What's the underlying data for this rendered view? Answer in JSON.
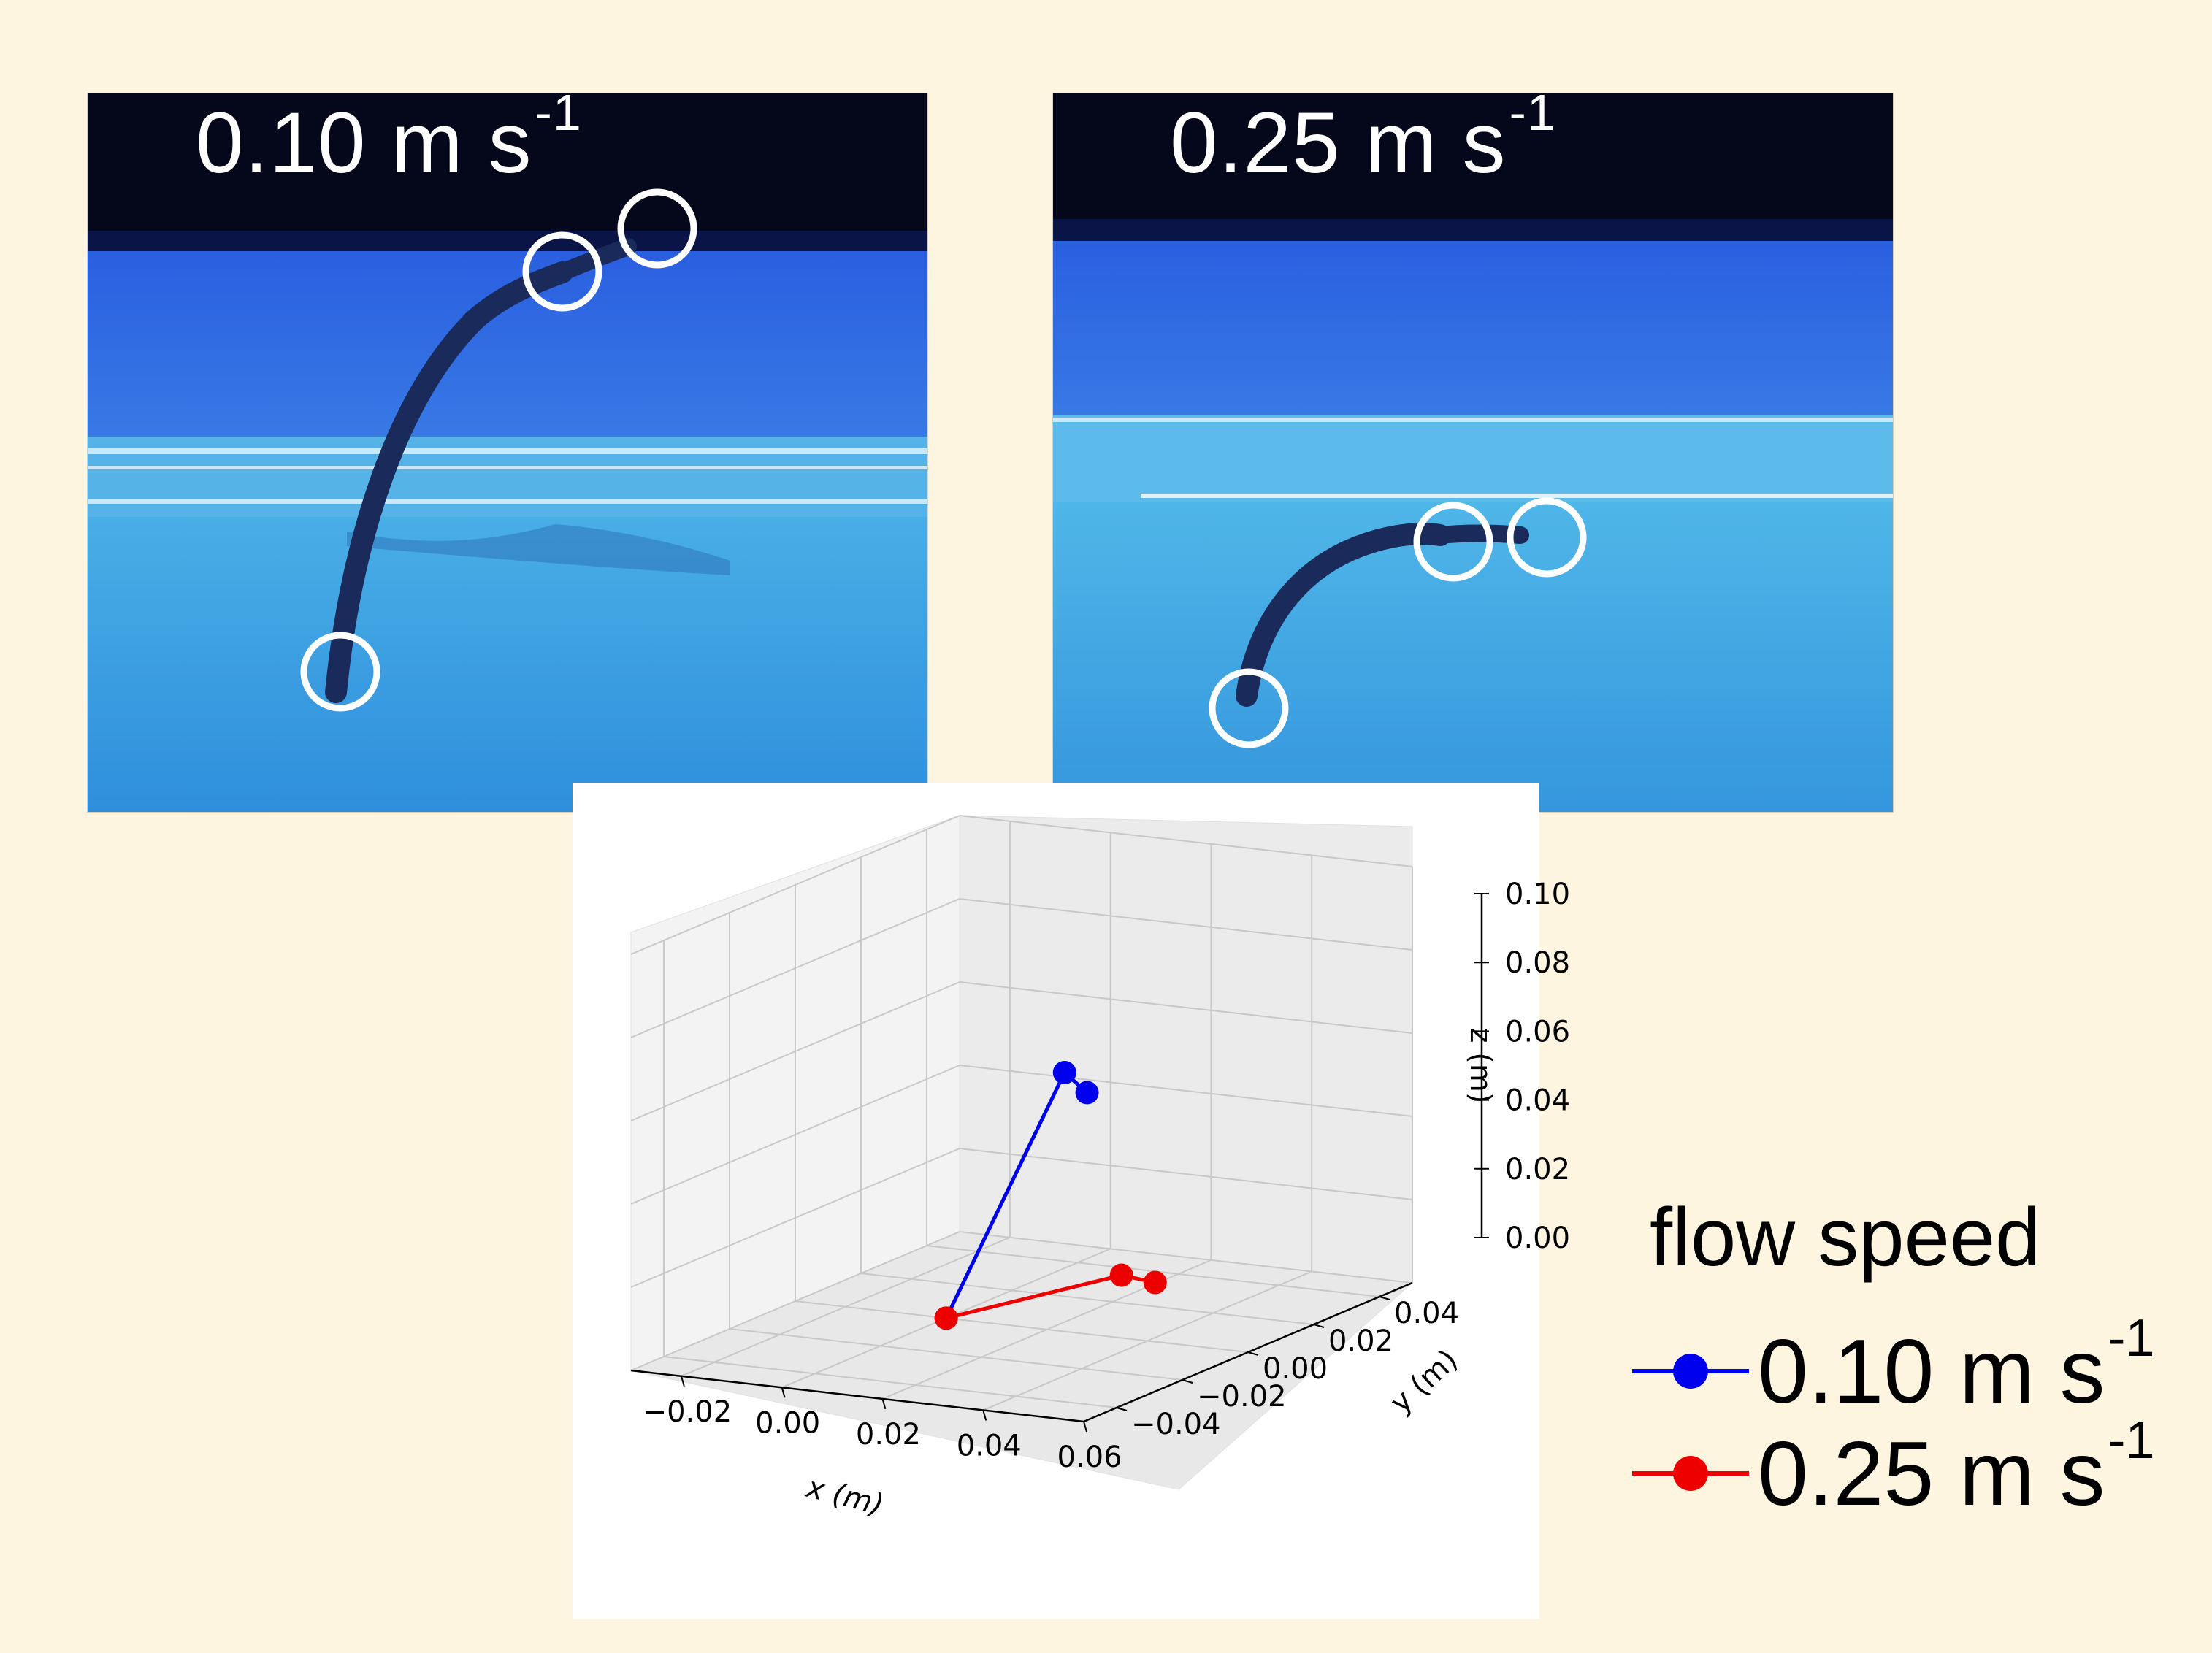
{
  "photos": {
    "left": {
      "label_main": "0.10 m s",
      "label_sup": "-1"
    },
    "right": {
      "label_main": "0.25 m s",
      "label_sup": "-1"
    }
  },
  "legend": {
    "title": "flow speed",
    "entries": [
      {
        "main": "0.10 m s",
        "sup": "-1",
        "color": "#0000ee"
      },
      {
        "main": "0.25 m s",
        "sup": "-1",
        "color": "#ee0000"
      }
    ]
  },
  "chart_data": {
    "type": "line3d",
    "xlabel": "x (m)",
    "ylabel": "y (m)",
    "zlabel": "z (m)",
    "xticks": [
      "−0.02",
      "0.00",
      "0.02",
      "0.04",
      "0.06"
    ],
    "yticks": [
      "−0.04",
      "−0.02",
      "0.00",
      "0.02",
      "0.04"
    ],
    "zticks": [
      "0.00",
      "0.02",
      "0.04",
      "0.06",
      "0.08",
      "0.10"
    ],
    "xlim": [
      -0.03,
      0.06
    ],
    "ylim": [
      -0.05,
      0.05
    ],
    "zlim": [
      0.0,
      0.1
    ],
    "grid": true,
    "series": [
      {
        "name": "0.10 m s-1",
        "color": "#0000ee",
        "points": [
          {
            "x": 0.0,
            "y": 0.0,
            "z": 0.0
          },
          {
            "x": 0.017,
            "y": 0.01,
            "z": 0.058
          },
          {
            "x": 0.028,
            "y": 0.0,
            "z": 0.058
          }
        ]
      },
      {
        "name": "0.25 m s-1",
        "color": "#ee0000",
        "points": [
          {
            "x": 0.0,
            "y": 0.0,
            "z": 0.0
          },
          {
            "x": 0.027,
            "y": 0.012,
            "z": 0.01
          },
          {
            "x": 0.035,
            "y": 0.01,
            "z": 0.01
          }
        ]
      }
    ]
  }
}
